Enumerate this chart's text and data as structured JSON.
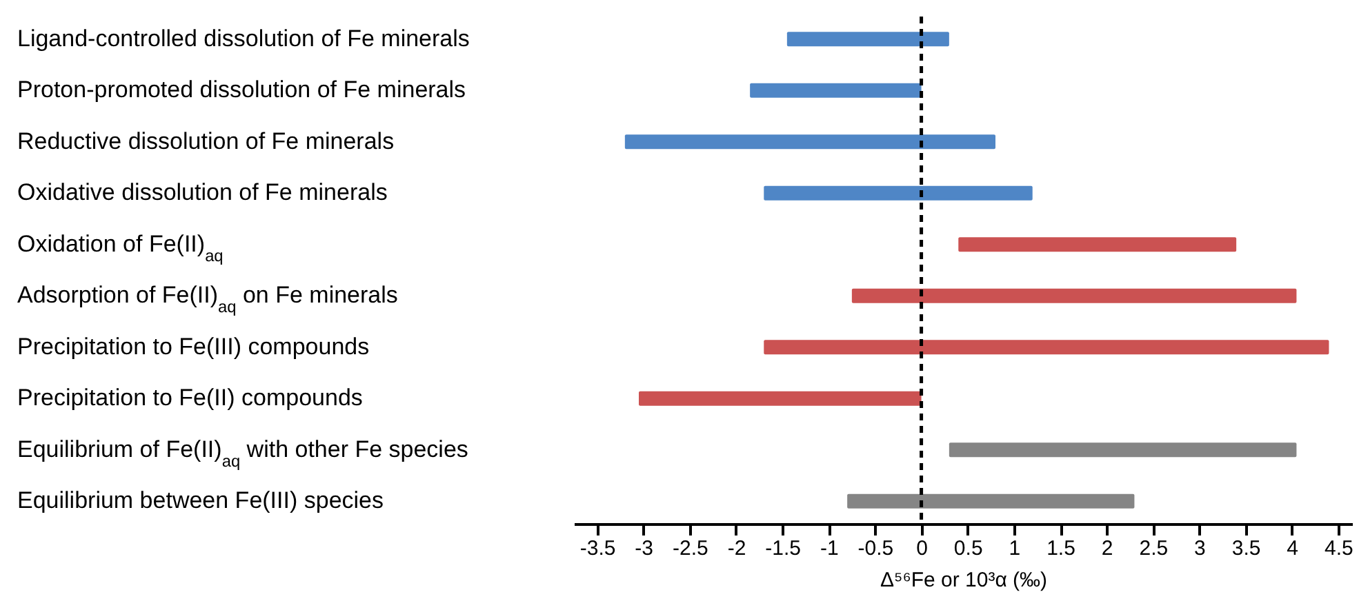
{
  "chart_data": {
    "type": "bar",
    "orientation": "horizontal",
    "xlabel": "Δ⁵⁶Fe or 10³α (‰)",
    "categories": [
      "Ligand-controlled dissolution of Fe minerals",
      "Proton-promoted dissolution of Fe minerals",
      "Reductive dissolution of Fe minerals",
      "Oxidative dissolution of Fe minerals",
      "Oxidation of Fe(II)$_{aq}$",
      "Adsorption of Fe(II)$_{aq}$ on Fe minerals",
      "Precipitation to Fe(III) compounds",
      "Precipitation to Fe(II) compounds",
      "Equilibrium of Fe(II)$_{aq}$ with other Fe species",
      "Equilibrium between Fe(III) species"
    ],
    "base": [
      -1.45,
      -1.85,
      -3.2,
      -1.7,
      0.4,
      -0.75,
      -1.7,
      -3.05,
      0.3,
      -0.8
    ],
    "values": [
      1.75,
      1.85,
      4.0,
      2.9,
      3.0,
      4.8,
      6.1,
      3.05,
      3.75,
      3.1
    ],
    "colors": [
      "#4f86c6",
      "#4f86c6",
      "#4f86c6",
      "#4f86c6",
      "#cb5252",
      "#cb5252",
      "#cb5252",
      "#cb5252",
      "#858585",
      "#858585"
    ],
    "xlim": [
      -3.75,
      4.65
    ],
    "xticks": [
      -3.5,
      -3,
      -2.5,
      -2,
      -1.5,
      -1,
      -0.5,
      0,
      0.5,
      1,
      1.5,
      2,
      2.5,
      3,
      3.5,
      4,
      4.5
    ],
    "ref_lines": [
      {
        "axis": "x",
        "value": 0,
        "color": "#000000",
        "line_style": "dashed"
      }
    ],
    "grid": false
  }
}
